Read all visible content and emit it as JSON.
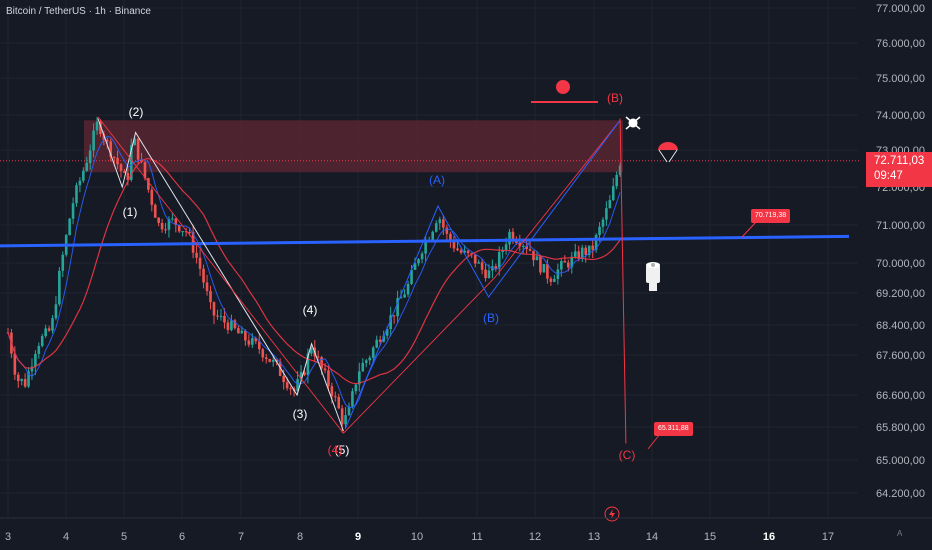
{
  "header": {
    "symbol_line": "Bitcoin / TetherUS · 1h · Binance"
  },
  "chart_data": {
    "type": "candlestick",
    "title": "Bitcoin / TetherUS · 1h · Binance",
    "y_ticks": [
      "77.000,00",
      "76.000,00",
      "75.000,00",
      "74.000,00",
      "73.000,00",
      "72.000,00",
      "71.000,00",
      "70.000,00",
      "69.200,00",
      "68.400,00",
      "67.600,00",
      "66.600,00",
      "65.800,00",
      "65.000,00",
      "64.200,00"
    ],
    "x_ticks": [
      "3",
      "4",
      "5",
      "6",
      "7",
      "8",
      "9",
      "10",
      "11",
      "12",
      "13",
      "14",
      "15",
      "16",
      "17"
    ],
    "current_price": "72.711,03",
    "countdown": "09:47",
    "callouts": [
      {
        "label": "70.719,38",
        "value": 70719.38
      },
      {
        "label": "65.311,88",
        "value": 65311.88
      }
    ],
    "wave_labels": [
      "(1)",
      "(2)",
      "(3)",
      "(4)",
      "(5)",
      "(4)",
      "(A)",
      "(B)",
      "(B)",
      "(C)"
    ],
    "resistance_zone": {
      "low": 72400,
      "high": 73850
    },
    "trend_line": {
      "start": 70450,
      "end": 70700
    },
    "colors": {
      "bull": "#26a69a",
      "bear": "#ef5350",
      "trend": "#2962ff",
      "zone": "#5a2632",
      "ma_fast": "#2962ff",
      "ma_slow": "#f23645"
    },
    "axis_corner": "A",
    "projection": {
      "from": 73900,
      "to": 65400
    }
  }
}
